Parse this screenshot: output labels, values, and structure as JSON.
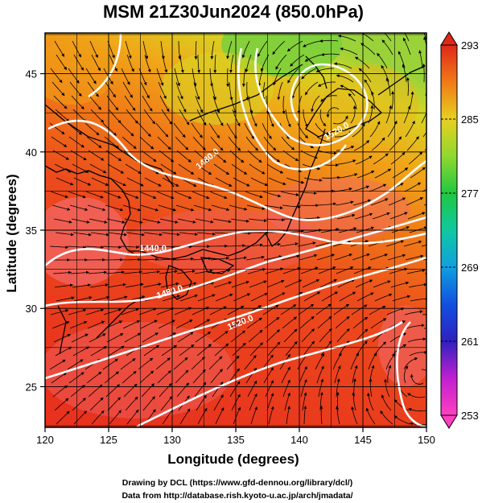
{
  "title": "MSM 21Z30Jun2024 (850.0hPa)",
  "x_axis": {
    "label": "Longitude (degrees)",
    "range": [
      120,
      150
    ],
    "ticks": [
      "120",
      "125",
      "130",
      "135",
      "140",
      "145",
      "150"
    ]
  },
  "y_axis": {
    "label": "Latitude  (degrees)",
    "range": [
      22.4,
      47.6
    ],
    "ticks": [
      "25",
      "30",
      "35",
      "40",
      "45"
    ]
  },
  "colorbar": {
    "range": [
      253,
      293
    ],
    "ticks": [
      "253",
      "261",
      "269",
      "277",
      "285",
      "293"
    ]
  },
  "contour_labels": [
    "1440.0",
    "1480.0",
    "1520.0",
    "1520.0",
    "1480.0"
  ],
  "credits": {
    "line1": "Drawing by DCL (https://www.gfd-dennou.org/library/dcl/)",
    "line2": "Data from http://database.rish.kyoto-u.ac.jp/arch/jmadata/"
  },
  "colors": {
    "warm": "#e8321e",
    "orange": "#f07a18",
    "yellow": "#e8d020",
    "green": "#8ed23c",
    "pink": "#f07070",
    "contour": "#ffffff",
    "coast": "#000000"
  }
}
